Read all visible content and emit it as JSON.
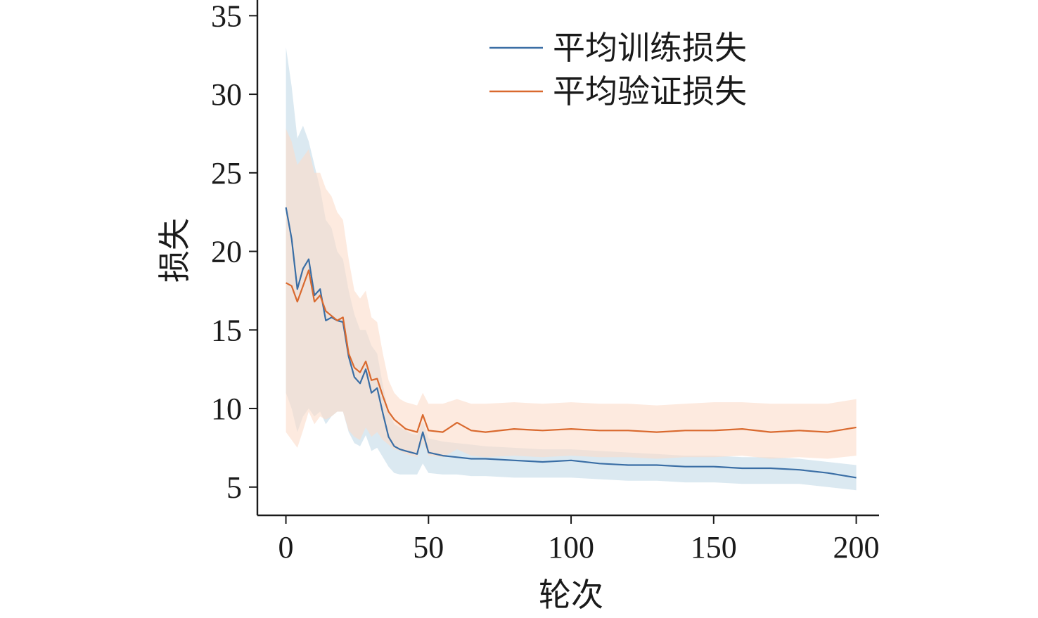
{
  "chart_data": {
    "type": "line",
    "xlabel": "轮次",
    "ylabel": "损失",
    "xlim": [
      -10,
      208
    ],
    "ylim": [
      3.2,
      36
    ],
    "xticks": [
      0,
      50,
      100,
      150,
      200
    ],
    "yticks": [
      5,
      10,
      15,
      20,
      25,
      30,
      35
    ],
    "grid": false,
    "legend_position": "top-right",
    "band": "shaded band around each line",
    "series": [
      {
        "name": "平均训练损失",
        "color": "#3a6ea5",
        "band_color": "#cfe1ec",
        "x": [
          0,
          2,
          4,
          6,
          8,
          10,
          12,
          14,
          16,
          18,
          20,
          22,
          24,
          26,
          28,
          30,
          32,
          34,
          36,
          38,
          40,
          42,
          44,
          46,
          48,
          50,
          55,
          60,
          65,
          70,
          80,
          90,
          100,
          110,
          120,
          130,
          140,
          150,
          160,
          170,
          180,
          190,
          200
        ],
        "values": [
          22.8,
          20.8,
          17.6,
          18.9,
          19.5,
          17.2,
          17.6,
          15.6,
          15.8,
          15.6,
          15.5,
          13.3,
          12.0,
          11.6,
          12.5,
          11.0,
          11.3,
          9.7,
          8.2,
          7.6,
          7.4,
          7.3,
          7.2,
          7.1,
          8.5,
          7.2,
          7.0,
          6.9,
          6.8,
          6.8,
          6.7,
          6.6,
          6.7,
          6.5,
          6.4,
          6.4,
          6.3,
          6.3,
          6.2,
          6.2,
          6.1,
          5.9,
          5.6
        ],
        "upper": [
          33.0,
          30.5,
          27.2,
          28.0,
          27.0,
          25.5,
          24.0,
          22.0,
          21.5,
          20.0,
          19.5,
          17.5,
          16.0,
          15.0,
          15.0,
          14.0,
          13.5,
          11.5,
          9.8,
          9.0,
          8.8,
          8.6,
          8.4,
          8.3,
          9.2,
          8.1,
          7.9,
          7.8,
          7.7,
          7.6,
          7.5,
          7.4,
          7.4,
          7.3,
          7.2,
          7.1,
          7.0,
          7.0,
          6.9,
          6.9,
          6.8,
          6.6,
          6.4
        ],
        "lower": [
          11.0,
          10.0,
          8.5,
          9.5,
          10.0,
          9.5,
          9.8,
          9.0,
          9.5,
          9.8,
          9.8,
          8.5,
          7.8,
          7.6,
          8.3,
          7.3,
          7.5,
          6.9,
          6.3,
          5.9,
          5.8,
          5.8,
          5.8,
          5.8,
          6.5,
          5.9,
          5.8,
          5.8,
          5.7,
          5.7,
          5.6,
          5.6,
          5.6,
          5.5,
          5.4,
          5.4,
          5.3,
          5.3,
          5.2,
          5.2,
          5.2,
          5.0,
          4.8
        ]
      },
      {
        "name": "平均验证损失",
        "color": "#d9692e",
        "band_color": "#fbdcc9",
        "x": [
          0,
          2,
          4,
          6,
          8,
          10,
          12,
          14,
          16,
          18,
          20,
          22,
          24,
          26,
          28,
          30,
          32,
          34,
          36,
          38,
          40,
          42,
          44,
          46,
          48,
          50,
          55,
          60,
          65,
          70,
          80,
          90,
          100,
          110,
          120,
          130,
          140,
          150,
          160,
          170,
          180,
          190,
          200
        ],
        "values": [
          18.0,
          17.8,
          16.8,
          17.8,
          18.8,
          16.8,
          17.2,
          16.2,
          15.9,
          15.6,
          15.8,
          13.5,
          12.6,
          12.3,
          13.0,
          11.8,
          11.9,
          10.8,
          9.8,
          9.3,
          9.0,
          8.7,
          8.6,
          8.5,
          9.6,
          8.6,
          8.5,
          9.1,
          8.6,
          8.5,
          8.7,
          8.6,
          8.7,
          8.6,
          8.6,
          8.5,
          8.6,
          8.6,
          8.7,
          8.5,
          8.6,
          8.5,
          8.8
        ],
        "upper": [
          27.8,
          27.0,
          25.5,
          26.0,
          26.5,
          25.0,
          25.0,
          24.0,
          23.5,
          22.5,
          22.0,
          19.5,
          17.5,
          17.0,
          17.5,
          15.8,
          15.5,
          13.5,
          11.8,
          11.0,
          10.6,
          10.4,
          10.3,
          10.2,
          11.0,
          10.3,
          10.3,
          10.6,
          10.3,
          10.3,
          10.4,
          10.3,
          10.4,
          10.3,
          10.3,
          10.2,
          10.3,
          10.4,
          10.4,
          10.3,
          10.3,
          10.3,
          10.6
        ],
        "lower": [
          8.5,
          8.0,
          7.5,
          8.6,
          9.8,
          9.0,
          9.5,
          9.3,
          9.5,
          9.8,
          9.8,
          8.6,
          8.2,
          8.0,
          8.8,
          8.2,
          8.5,
          8.0,
          7.7,
          7.4,
          7.3,
          7.1,
          7.0,
          6.9,
          7.9,
          7.0,
          6.9,
          7.4,
          7.0,
          6.9,
          7.0,
          6.9,
          7.0,
          6.9,
          6.9,
          6.8,
          6.9,
          6.9,
          7.0,
          6.8,
          6.9,
          6.8,
          7.0
        ]
      }
    ]
  }
}
